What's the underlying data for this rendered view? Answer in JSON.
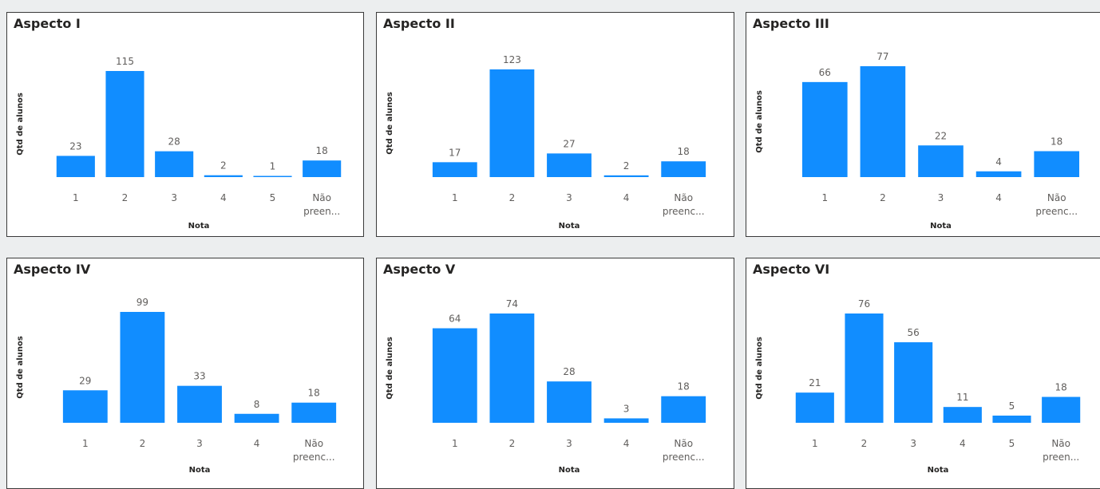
{
  "colors": {
    "bar": "#118DFF",
    "page_background": "#eceeef",
    "panel_border": "#3a3a3a"
  },
  "chart_data": [
    {
      "type": "bar",
      "title": "Aspecto I",
      "xlabel": "Nota",
      "ylabel": "Qtd de alunos",
      "categories": [
        "1",
        "2",
        "3",
        "4",
        "5",
        "Não preen..."
      ],
      "values": [
        23,
        115,
        28,
        2,
        1,
        18
      ],
      "ylim": [
        0,
        115
      ],
      "grid": false
    },
    {
      "type": "bar",
      "title": "Aspecto II",
      "xlabel": "Nota",
      "ylabel": "Qtd de alunos",
      "categories": [
        "1",
        "2",
        "3",
        "4",
        "Não preenc..."
      ],
      "values": [
        17,
        123,
        27,
        2,
        18
      ],
      "ylim": [
        0,
        123
      ],
      "grid": false
    },
    {
      "type": "bar",
      "title": "Aspecto III",
      "xlabel": "Nota",
      "ylabel": "Qtd de alunos",
      "categories": [
        "1",
        "2",
        "3",
        "4",
        "Não preenc..."
      ],
      "values": [
        66,
        77,
        22,
        4,
        18
      ],
      "ylim": [
        0,
        77
      ],
      "grid": false
    },
    {
      "type": "bar",
      "title": "Aspecto IV",
      "xlabel": "Nota",
      "ylabel": "Qtd de alunos",
      "categories": [
        "1",
        "2",
        "3",
        "4",
        "Não preenc..."
      ],
      "values": [
        29,
        99,
        33,
        8,
        18
      ],
      "ylim": [
        0,
        99
      ],
      "grid": false
    },
    {
      "type": "bar",
      "title": "Aspecto V",
      "xlabel": "Nota",
      "ylabel": "Qtd de alunos",
      "categories": [
        "1",
        "2",
        "3",
        "4",
        "Não preenc..."
      ],
      "values": [
        64,
        74,
        28,
        3,
        18
      ],
      "ylim": [
        0,
        74
      ],
      "grid": false
    },
    {
      "type": "bar",
      "title": "Aspecto VI",
      "xlabel": "Nota",
      "ylabel": "Qtd de alunos",
      "categories": [
        "1",
        "2",
        "3",
        "4",
        "5",
        "Não preen..."
      ],
      "values": [
        21,
        76,
        56,
        11,
        5,
        18
      ],
      "ylim": [
        0,
        76
      ],
      "grid": false
    }
  ]
}
